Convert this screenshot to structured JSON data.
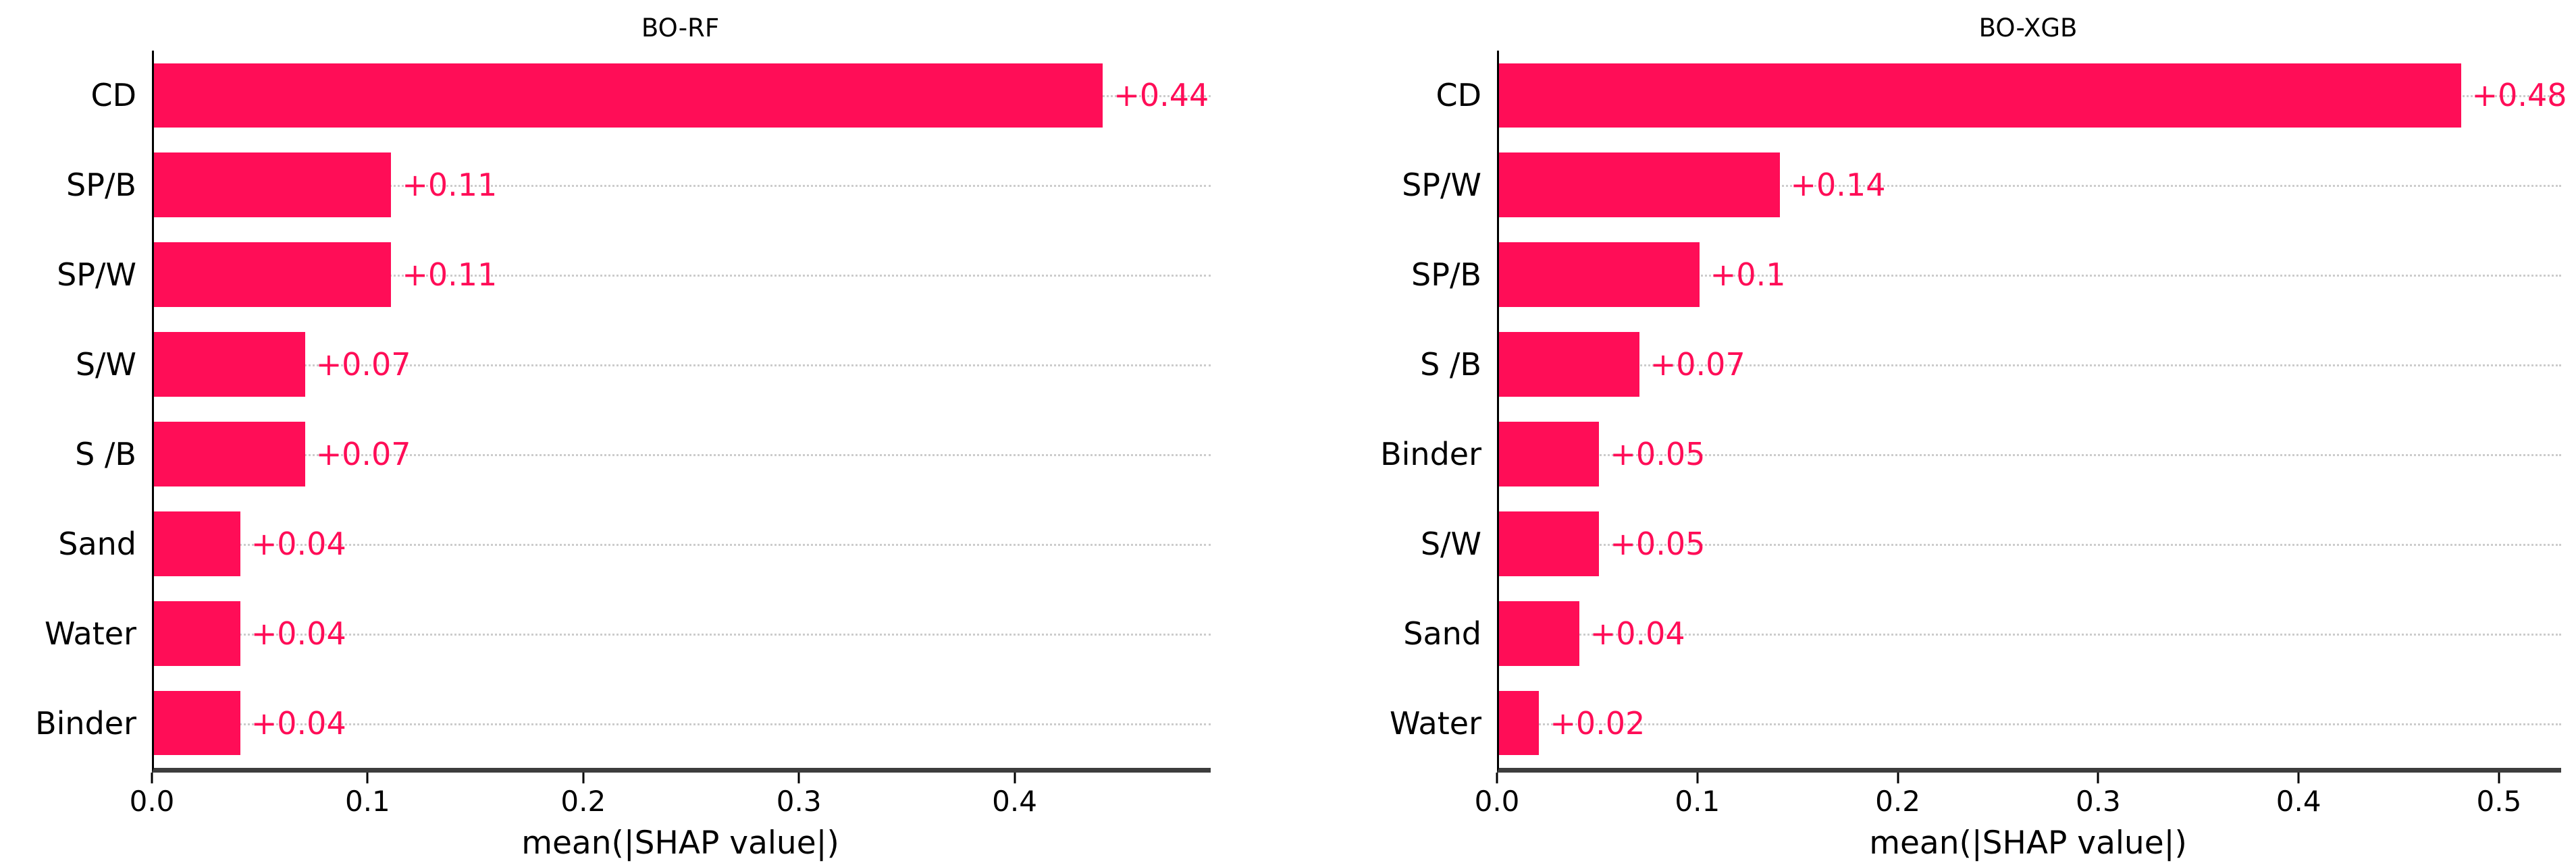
{
  "figure": {
    "background": "#ffffff",
    "bar_color": "#ff0d57",
    "gridline_color": "#cccccc",
    "axis_spine_color": "#3d3d3d",
    "text_color": "#000000"
  },
  "chart_data": [
    {
      "type": "bar",
      "orientation": "horizontal",
      "title": "BO-RF",
      "categories": [
        "CD",
        "SP/B",
        "SP/W",
        "S/W",
        "S /B",
        "Sand",
        "Water",
        "Binder"
      ],
      "values": [
        0.44,
        0.11,
        0.11,
        0.07,
        0.07,
        0.04,
        0.04,
        0.04
      ],
      "value_labels": [
        "+0.44",
        "+0.11",
        "+0.11",
        "+0.07",
        "+0.07",
        "+0.04",
        "+0.04",
        "+0.04"
      ],
      "xlabel": "mean(|SHAP value|)",
      "xticks": [
        0.0,
        0.1,
        0.2,
        0.3,
        0.4
      ],
      "xtick_labels": [
        "0.0",
        "0.1",
        "0.2",
        "0.3",
        "0.4"
      ],
      "xlim": [
        0,
        0.49
      ],
      "bar_color": "#ff0d57",
      "grid": "horizontal-dotted",
      "legend": "none"
    },
    {
      "type": "bar",
      "orientation": "horizontal",
      "title": "BO-XGB",
      "categories": [
        "CD",
        "SP/W",
        "SP/B",
        "S /B",
        "Binder",
        "S/W",
        "Sand",
        "Water"
      ],
      "values": [
        0.48,
        0.14,
        0.1,
        0.07,
        0.05,
        0.05,
        0.04,
        0.02
      ],
      "value_labels": [
        "+0.48",
        "+0.14",
        "+0.1",
        "+0.07",
        "+0.05",
        "+0.05",
        "+0.04",
        "+0.02"
      ],
      "xlabel": "mean(|SHAP value|)",
      "xticks": [
        0.0,
        0.1,
        0.2,
        0.3,
        0.4,
        0.5
      ],
      "xtick_labels": [
        "0.0",
        "0.1",
        "0.2",
        "0.3",
        "0.4",
        "0.5"
      ],
      "xlim": [
        0,
        0.53
      ],
      "bar_color": "#ff0d57",
      "grid": "horizontal-dotted",
      "legend": "none"
    }
  ]
}
